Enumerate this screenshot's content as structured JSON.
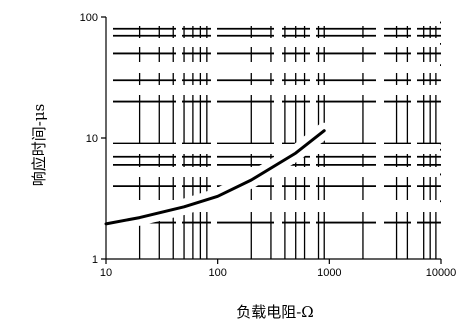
{
  "chart_data": {
    "type": "line",
    "title": "",
    "xlabel": "负载电阻-Ω",
    "ylabel": "响应时间-μs",
    "xscale": "log",
    "yscale": "log",
    "xlim": [
      10,
      10000
    ],
    "ylim": [
      1,
      100
    ],
    "x_ticks": [
      10,
      100,
      1000,
      10000
    ],
    "y_ticks": [
      1,
      10,
      100
    ],
    "x_tick_labels": [
      "10",
      "100",
      "1000",
      "10000"
    ],
    "y_tick_labels": [
      "1",
      "10",
      "100"
    ],
    "grid": "dense log grid (white cut-out breaks behind the curve)",
    "series": [
      {
        "color": "#000000",
        "x": [
          10,
          20,
          50,
          100,
          200,
          500,
          900
        ],
        "y": [
          1.95,
          2.2,
          2.7,
          3.3,
          4.5,
          7.5,
          11.5
        ]
      }
    ]
  }
}
